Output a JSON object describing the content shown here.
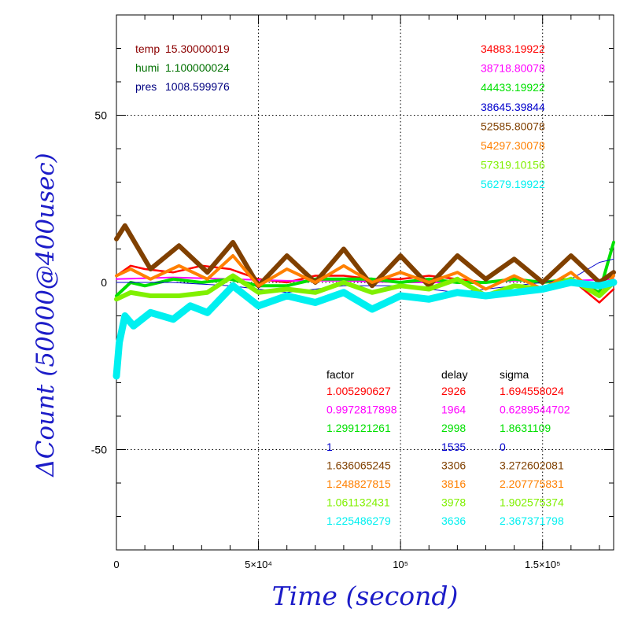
{
  "chart_data": {
    "type": "line",
    "xlabel": "Time (second)",
    "ylabel": "ΔCount (50000@400usec)",
    "xlim": [
      0,
      175000
    ],
    "ylim": [
      -80,
      80
    ],
    "grid": true,
    "x_ticks": [
      {
        "value": 0,
        "label": "0"
      },
      {
        "value": 50000,
        "label": "5×10⁴"
      },
      {
        "value": 100000,
        "label": "10⁵"
      },
      {
        "value": 150000,
        "label": "1.5×10⁵"
      }
    ],
    "y_ticks": [
      {
        "value": -50,
        "label": "-50"
      },
      {
        "value": 0,
        "label": "0"
      },
      {
        "value": 50,
        "label": "50"
      }
    ],
    "env": [
      {
        "label": "temp",
        "value": "15.30000019",
        "color": "#8b0000"
      },
      {
        "label": "humi",
        "value": "1.100000024",
        "color": "#007000"
      },
      {
        "label": "pres",
        "value": "1008.599976",
        "color": "#000080"
      }
    ],
    "table_headers": [
      "factor",
      "delay",
      "sigma"
    ],
    "series": [
      {
        "base": "34883.19922",
        "factor": "1.005290627",
        "delay": "2926",
        "sigma": "1.694558024",
        "color": "#ff0000",
        "x": [
          0,
          5000,
          10000,
          20000,
          30000,
          40000,
          50000,
          60000,
          70000,
          80000,
          90000,
          100000,
          110000,
          120000,
          130000,
          140000,
          150000,
          160000,
          170000,
          175000
        ],
        "y": [
          2,
          5,
          4,
          3,
          5,
          4,
          1,
          0,
          2,
          2,
          1,
          1,
          2,
          1,
          0,
          1,
          0,
          1,
          -6,
          -2
        ]
      },
      {
        "base": "38718.80078",
        "factor": "0.9972817898",
        "delay": "1964",
        "sigma": "0.6289544702",
        "color": "#ff00ff",
        "x": [
          0,
          20000,
          40000,
          60000,
          80000,
          100000,
          120000,
          140000,
          160000,
          175000
        ],
        "y": [
          1,
          1.5,
          1,
          0.5,
          0.5,
          0,
          0,
          0.5,
          0.5,
          1
        ]
      },
      {
        "base": "44433.19922",
        "factor": "1.299121261",
        "delay": "2998",
        "sigma": "1.8631109",
        "color": "#00e000",
        "x": [
          0,
          5000,
          10000,
          20000,
          30000,
          40000,
          50000,
          60000,
          70000,
          80000,
          90000,
          100000,
          110000,
          120000,
          130000,
          140000,
          150000,
          160000,
          170000,
          175000
        ],
        "y": [
          -4,
          0,
          -1,
          1,
          0,
          1,
          -1,
          -1,
          1,
          1,
          1,
          0,
          1,
          0,
          0,
          1,
          0,
          1,
          -3,
          12
        ]
      },
      {
        "base": "38645.39844",
        "factor": "1",
        "delay": "1535",
        "sigma": "0",
        "color": "#0000cc",
        "x": [
          0,
          20000,
          40000,
          60000,
          80000,
          100000,
          120000,
          140000,
          160000,
          170000,
          175000
        ],
        "y": [
          0,
          0,
          -1,
          -3,
          -1,
          -1,
          -3,
          -1,
          1,
          6,
          7
        ]
      },
      {
        "base": "52585.80078",
        "factor": "1.636065245",
        "delay": "3306",
        "sigma": "3.272602081",
        "color": "#804000",
        "x": [
          0,
          3000,
          12000,
          22000,
          32000,
          41000,
          50000,
          60000,
          70000,
          80000,
          90000,
          100000,
          110000,
          120000,
          130000,
          140000,
          150000,
          160000,
          170000,
          175000
        ],
        "y": [
          13,
          17,
          4,
          11,
          3,
          12,
          -1,
          8,
          0,
          10,
          -1,
          8,
          -1,
          8,
          1,
          7,
          0,
          8,
          0,
          3
        ]
      },
      {
        "base": "54297.30078",
        "factor": "1.248827815",
        "delay": "3816",
        "sigma": "2.207775831",
        "color": "#ff8000",
        "x": [
          0,
          5000,
          12000,
          22000,
          32000,
          41000,
          50000,
          60000,
          70000,
          80000,
          90000,
          100000,
          110000,
          120000,
          130000,
          140000,
          150000,
          160000,
          170000,
          175000
        ],
        "y": [
          2,
          4,
          1,
          5,
          1,
          8,
          -1,
          4,
          0,
          5,
          0,
          3,
          0,
          3,
          -2,
          2,
          -2,
          3,
          -4,
          2
        ]
      },
      {
        "base": "57319.10156",
        "factor": "1.061132431",
        "delay": "3978",
        "sigma": "1.902575374",
        "color": "#80f000",
        "x": [
          0,
          5000,
          12000,
          22000,
          32000,
          41000,
          50000,
          60000,
          70000,
          80000,
          90000,
          100000,
          110000,
          120000,
          130000,
          140000,
          150000,
          160000,
          170000,
          175000
        ],
        "y": [
          -5,
          -3,
          -4,
          -4,
          -3,
          2,
          -3,
          -2,
          -3,
          0,
          -3,
          -1,
          -2,
          1,
          -4,
          -1,
          -2,
          1,
          -4,
          0
        ]
      },
      {
        "base": "56279.19922",
        "factor": "1.225486279",
        "delay": "3636",
        "sigma": "2.367371798",
        "color": "#00f0f0",
        "x": [
          0,
          1000,
          3000,
          6000,
          12000,
          20000,
          26000,
          32000,
          41000,
          50000,
          60000,
          70000,
          80000,
          90000,
          100000,
          110000,
          120000,
          130000,
          140000,
          150000,
          160000,
          170000,
          175000
        ],
        "y": [
          -28,
          -18,
          -10,
          -13,
          -9,
          -11,
          -7,
          -9,
          -1,
          -7,
          -4,
          -6,
          -3,
          -8,
          -4,
          -5,
          -3,
          -4,
          -3,
          -2,
          0,
          -1,
          0
        ]
      }
    ]
  }
}
